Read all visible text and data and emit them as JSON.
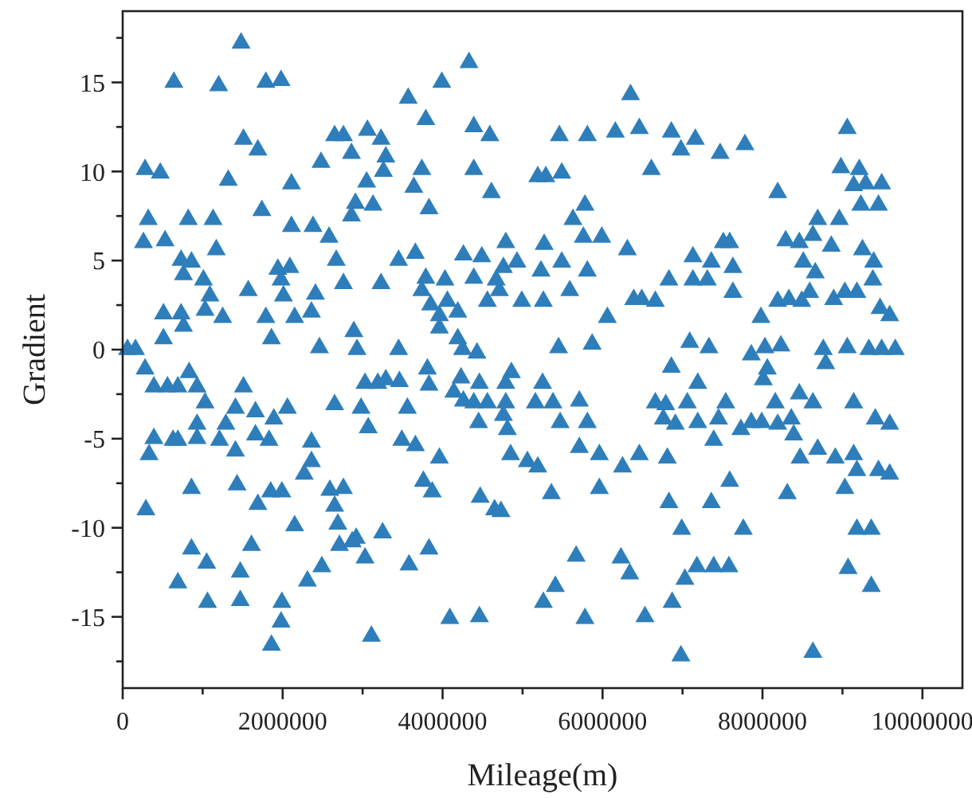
{
  "chart_data": {
    "type": "scatter",
    "xlabel": "Mileage(m)",
    "ylabel": "Gradient",
    "marker": "triangle",
    "xlim": [
      0,
      10500000
    ],
    "ylim": [
      -19,
      19
    ],
    "xticks": [
      0,
      {
        "value": 1000000,
        "label": null
      },
      2000000,
      {
        "value": 3000000,
        "label": null
      },
      4000000,
      {
        "value": 5000000,
        "label": null
      },
      6000000,
      {
        "value": 7000000,
        "label": null
      },
      8000000,
      {
        "value": 9000000,
        "label": null
      },
      10000000
    ],
    "yticks": [
      {
        "value": -17.5,
        "label": null
      },
      -15,
      {
        "value": -12.5,
        "label": null
      },
      -10,
      {
        "value": -7.5,
        "label": null
      },
      -5,
      {
        "value": -2.5,
        "label": null
      },
      0,
      {
        "value": 2.5,
        "label": null
      },
      5,
      {
        "value": 7.5,
        "label": null
      },
      10,
      {
        "value": 12.5,
        "label": null
      },
      15,
      {
        "value": 17.5,
        "label": null
      }
    ],
    "series": [
      {
        "color": "#2e7ebb",
        "x": [
          1480000,
          640000,
          1200000,
          1790000,
          1980000,
          1510000,
          1690000,
          280000,
          470000,
          1320000,
          320000,
          820000,
          1130000,
          260000,
          530000,
          1170000,
          1740000,
          730000,
          860000,
          760000,
          1010000,
          1090000,
          1030000,
          1250000,
          510000,
          730000,
          760000,
          510000,
          1570000,
          1790000,
          1860000,
          1940000,
          2090000,
          1980000,
          2010000,
          2110000,
          2110000,
          2150000,
          2360000,
          2410000,
          2380000,
          2480000,
          2580000,
          2670000,
          2760000,
          2460000,
          2650000,
          2760000,
          2860000,
          3060000,
          3230000,
          3290000,
          3260000,
          3050000,
          2910000,
          3130000,
          2860000,
          3230000,
          3450000,
          3660000,
          2890000,
          2930000,
          3450000,
          3570000,
          3790000,
          3990000,
          4330000,
          4390000,
          4590000,
          4390000,
          3740000,
          3640000,
          3830000,
          4610000,
          3790000,
          4030000,
          3740000,
          3850000,
          4060000,
          3960000,
          4190000,
          3960000,
          4190000,
          4250000,
          4430000,
          4260000,
          4490000,
          4390000,
          4560000,
          4670000,
          4760000,
          4790000,
          4710000,
          4930000,
          4990000,
          5190000,
          280000,
          160000,
          60000,
          390000,
          560000,
          690000,
          830000,
          930000,
          1510000,
          3030000,
          3190000,
          3290000,
          3460000,
          3810000,
          3830000,
          4230000,
          4460000,
          4860000,
          4790000,
          1030000,
          390000,
          330000,
          630000,
          690000,
          930000,
          930000,
          1210000,
          1290000,
          1410000,
          1410000,
          1660000,
          1660000,
          1830000,
          1890000,
          2060000,
          2150000,
          1690000,
          1850000,
          1990000,
          1430000,
          860000,
          290000,
          860000,
          1050000,
          690000,
          1060000,
          1470000,
          1610000,
          1470000,
          1990000,
          1980000,
          1860000,
          2270000,
          2360000,
          2360000,
          2590000,
          2760000,
          2650000,
          2690000,
          2710000,
          2870000,
          2920000,
          3030000,
          2490000,
          2310000,
          3250000,
          2650000,
          2980000,
          3070000,
          3560000,
          3490000,
          3660000,
          3760000,
          3870000,
          3580000,
          3830000,
          3960000,
          3110000,
          4090000,
          4460000,
          4140000,
          4260000,
          4390000,
          4450000,
          4560000,
          4760000,
          4790000,
          4810000,
          4470000,
          4650000,
          4730000,
          4850000,
          5160000,
          5060000,
          5190000,
          5260000,
          6350000,
          5460000,
          5810000,
          6160000,
          6460000,
          6860000,
          6980000,
          7160000,
          7470000,
          7780000,
          9060000,
          6610000,
          5290000,
          5490000,
          8190000,
          8980000,
          9210000,
          9140000,
          9290000,
          9490000,
          9230000,
          9450000,
          5780000,
          5630000,
          5760000,
          5990000,
          5270000,
          6310000,
          5490000,
          5810000,
          5230000,
          5590000,
          5260000,
          6060000,
          6390000,
          6490000,
          6660000,
          6830000,
          7130000,
          7130000,
          7310000,
          7360000,
          7510000,
          7590000,
          7630000,
          7630000,
          8190000,
          8330000,
          8490000,
          8590000,
          8290000,
          8460000,
          8630000,
          8690000,
          8960000,
          8860000,
          8510000,
          8660000,
          8890000,
          9030000,
          9180000,
          9250000,
          9390000,
          9380000,
          9470000,
          9590000,
          7980000,
          5450000,
          5870000,
          7090000,
          7330000,
          7860000,
          8030000,
          8230000,
          8760000,
          9060000,
          9330000,
          9490000,
          9660000,
          8790000,
          6860000,
          7190000,
          8060000,
          8010000,
          5250000,
          5380000,
          5710000,
          5470000,
          5810000,
          5710000,
          5960000,
          5360000,
          5960000,
          6250000,
          6460000,
          6660000,
          6790000,
          6760000,
          6910000,
          7060000,
          7190000,
          7450000,
          7540000,
          7390000,
          6810000,
          6830000,
          7360000,
          6990000,
          7590000,
          7730000,
          7860000,
          7990000,
          8190000,
          8360000,
          8390000,
          8160000,
          8460000,
          8630000,
          9140000,
          9410000,
          9590000,
          8470000,
          8690000,
          8910000,
          9140000,
          9180000,
          9450000,
          9590000,
          8310000,
          9030000,
          9180000,
          9360000,
          9070000,
          9360000,
          5670000,
          5410000,
          5780000,
          6230000,
          6340000,
          6530000,
          6870000,
          7030000,
          7180000,
          7390000,
          7580000,
          7760000,
          6980000,
          8630000
        ],
        "values": [
          17.3,
          15.1,
          14.9,
          15.1,
          15.2,
          11.9,
          11.3,
          10.2,
          10.0,
          9.6,
          7.4,
          7.4,
          7.4,
          6.1,
          6.2,
          5.7,
          7.9,
          5.1,
          5.0,
          4.3,
          4.0,
          3.1,
          2.3,
          1.9,
          2.1,
          2.1,
          1.4,
          0.7,
          3.4,
          1.9,
          0.7,
          4.6,
          4.7,
          4.0,
          3.1,
          9.4,
          7.0,
          1.9,
          2.2,
          3.2,
          7.0,
          10.6,
          6.4,
          5.1,
          3.8,
          0.2,
          12.1,
          12.1,
          11.1,
          12.4,
          11.9,
          10.9,
          10.1,
          9.5,
          8.3,
          8.2,
          7.6,
          3.8,
          5.1,
          5.5,
          1.1,
          0.1,
          0.1,
          14.2,
          13.0,
          15.1,
          16.2,
          12.6,
          12.1,
          10.2,
          10.2,
          9.2,
          8.0,
          8.9,
          4.1,
          4.0,
          3.4,
          2.6,
          2.8,
          2.0,
          2.2,
          1.3,
          0.7,
          0.1,
          -0.1,
          5.4,
          5.3,
          4.1,
          2.8,
          4.0,
          4.7,
          6.1,
          3.4,
          5.0,
          2.8,
          9.8,
          -1.0,
          0.1,
          0.1,
          -2.0,
          -2.0,
          -2.0,
          -1.2,
          -2.0,
          -2.0,
          -1.8,
          -1.8,
          -1.6,
          -1.7,
          -1.0,
          -1.9,
          -1.5,
          -1.8,
          -1.2,
          -1.8,
          -2.9,
          -4.9,
          -5.8,
          -5.0,
          -5.0,
          -4.9,
          -4.1,
          -5.0,
          -4.1,
          -3.2,
          -5.6,
          -3.4,
          -4.7,
          -5.0,
          -3.8,
          -3.2,
          -9.8,
          -8.6,
          -7.9,
          -7.9,
          -7.5,
          -7.7,
          -8.9,
          -11.1,
          -11.9,
          -13.0,
          -14.1,
          -12.4,
          -10.9,
          -14.0,
          -14.1,
          -15.2,
          -16.5,
          -6.9,
          -6.2,
          -5.1,
          -7.8,
          -7.7,
          -8.7,
          -9.7,
          -10.9,
          -10.7,
          -10.5,
          -11.6,
          -12.1,
          -12.9,
          -10.2,
          -3.0,
          -3.2,
          -4.3,
          -3.2,
          -5.0,
          -5.3,
          -7.3,
          -7.9,
          -12.0,
          -11.1,
          -6.0,
          -16.0,
          -15.0,
          -14.9,
          -2.3,
          -2.8,
          -2.9,
          -4.0,
          -2.9,
          -3.6,
          -2.9,
          -4.4,
          -8.2,
          -8.9,
          -9.0,
          -5.8,
          -2.9,
          -6.2,
          -6.5,
          -14.1,
          14.4,
          12.1,
          12.1,
          12.3,
          12.5,
          12.3,
          11.3,
          11.9,
          11.1,
          11.6,
          12.5,
          10.2,
          9.8,
          10.0,
          8.9,
          10.3,
          10.2,
          9.3,
          9.4,
          9.4,
          8.2,
          8.2,
          8.2,
          7.4,
          6.4,
          6.4,
          6.0,
          5.7,
          5.0,
          4.5,
          4.5,
          3.4,
          2.8,
          1.9,
          2.9,
          2.9,
          2.8,
          4.0,
          5.3,
          4.0,
          4.0,
          5.0,
          6.1,
          6.1,
          4.7,
          3.3,
          2.8,
          2.9,
          2.8,
          3.3,
          6.2,
          6.1,
          6.5,
          7.4,
          7.4,
          5.9,
          5.0,
          4.4,
          2.9,
          3.3,
          3.3,
          5.7,
          5.0,
          4.0,
          2.4,
          2.0,
          1.9,
          0.2,
          0.4,
          0.5,
          0.2,
          -0.2,
          0.2,
          0.3,
          0.1,
          0.2,
          0.1,
          0.1,
          0.1,
          -0.7,
          -0.9,
          -1.8,
          -1.0,
          -1.6,
          -1.8,
          -2.9,
          -2.8,
          -4.0,
          -4.0,
          -5.4,
          -5.8,
          -8.0,
          -7.7,
          -6.5,
          -5.8,
          -2.9,
          -3.0,
          -3.8,
          -4.1,
          -2.9,
          -4.0,
          -3.8,
          -2.9,
          -5.0,
          -6.0,
          -8.5,
          -8.5,
          -10.0,
          -7.3,
          -4.4,
          -4.0,
          -4.0,
          -4.1,
          -3.8,
          -4.7,
          -2.9,
          -2.4,
          -2.9,
          -2.9,
          -3.8,
          -4.1,
          -6.0,
          -5.5,
          -6.0,
          -5.8,
          -6.7,
          -6.7,
          -6.9,
          -8.0,
          -7.7,
          -10.0,
          -10.0,
          -12.2,
          -13.2,
          -11.5,
          -13.2,
          -15.0,
          -11.6,
          -12.5,
          -14.9,
          -14.1,
          -12.8,
          -12.1,
          -12.1,
          -12.1,
          -10.0,
          -17.1,
          -16.9
        ]
      }
    ]
  }
}
